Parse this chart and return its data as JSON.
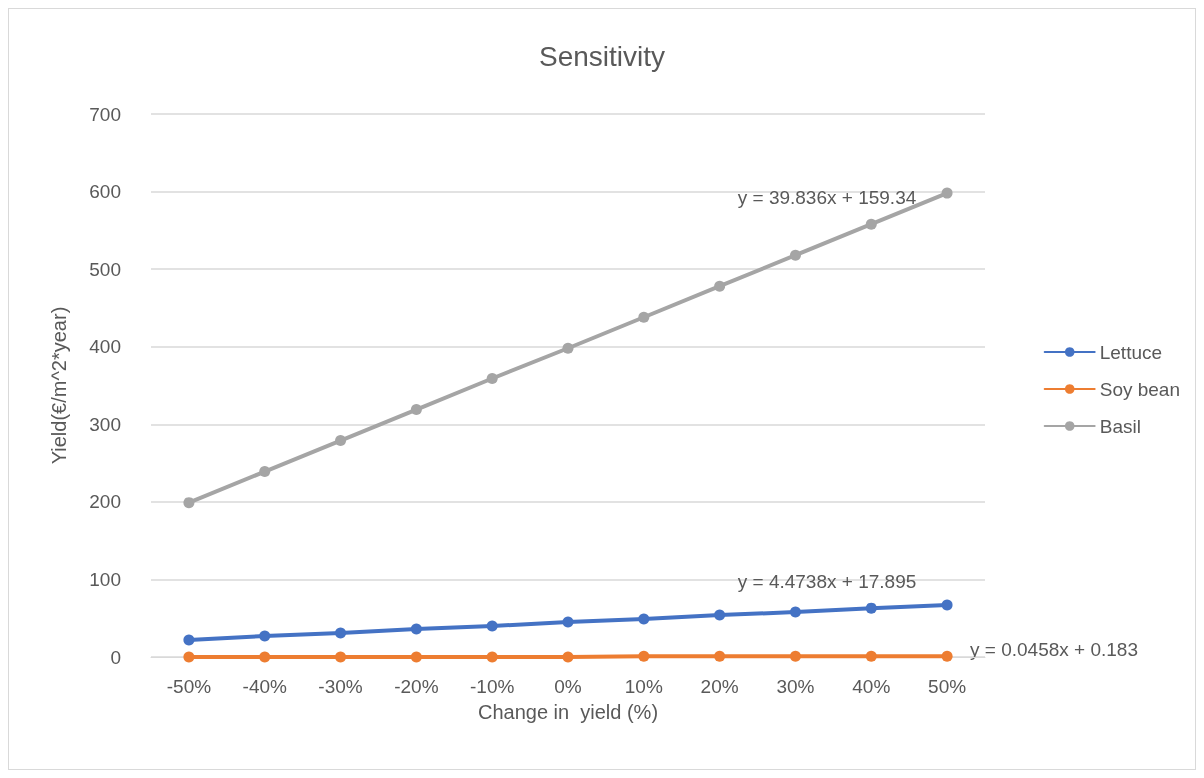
{
  "chart_data": {
    "type": "line",
    "title": "Sensitivity",
    "xlabel": "Change in  yield (%)",
    "ylabel": "Yield(€/m^2*year)",
    "categories": [
      "-50%",
      "-40%",
      "-30%",
      "-20%",
      "-10%",
      "0%",
      "10%",
      "20%",
      "30%",
      "40%",
      "50%"
    ],
    "series": [
      {
        "name": "Lettuce",
        "color": "#4472c4",
        "values": [
          22,
          27,
          31,
          36,
          40,
          45,
          49,
          54,
          58,
          63,
          67
        ]
      },
      {
        "name": "Soy bean",
        "color": "#ed7d31",
        "values": [
          0,
          0,
          0,
          0,
          0,
          0,
          1,
          1,
          1,
          1,
          1
        ]
      },
      {
        "name": "Basil",
        "color": "#a5a5a5",
        "values": [
          199,
          239,
          279,
          319,
          359,
          398,
          438,
          478,
          518,
          558,
          598
        ]
      }
    ],
    "ylim": [
      0,
      700
    ],
    "yticks": [
      0,
      100,
      200,
      300,
      400,
      500,
      600,
      700
    ],
    "grid": "y",
    "legend": "right",
    "marker": "circle",
    "line_style": "solid",
    "annotations": [
      "y = 39.836x + 159.34",
      "y = 4.4738x + 17.895",
      "y = 0.0458x + 0.183"
    ]
  }
}
